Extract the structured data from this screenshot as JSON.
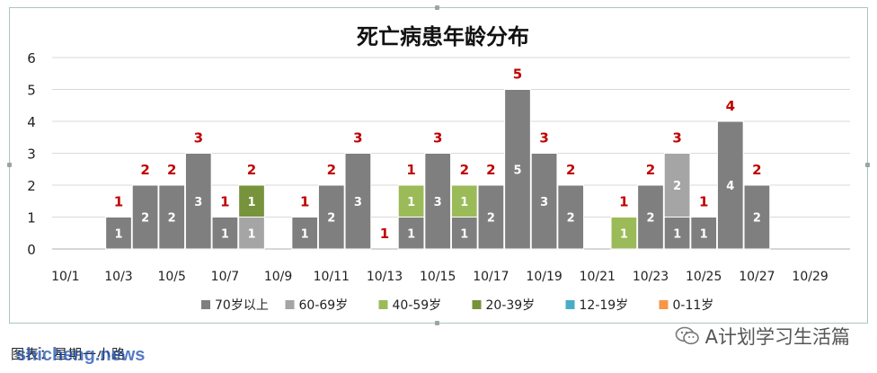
{
  "chart_data": {
    "type": "bar",
    "stacked": true,
    "title": "死亡病患年龄分布",
    "categories": [
      "10/1",
      "10/2",
      "10/3",
      "10/4",
      "10/5",
      "10/6",
      "10/7",
      "10/8",
      "10/9",
      "10/10",
      "10/11",
      "10/12",
      "10/13",
      "10/14",
      "10/15",
      "10/16",
      "10/17",
      "10/18",
      "10/19",
      "10/20",
      "10/21",
      "10/22",
      "10/23",
      "10/24",
      "10/25",
      "10/26",
      "10/27",
      "10/28",
      "10/29",
      "10/30"
    ],
    "x_tick_labels": [
      "10/1",
      "10/3",
      "10/5",
      "10/7",
      "10/9",
      "10/11",
      "10/13",
      "10/15",
      "10/17",
      "10/19",
      "10/21",
      "10/23",
      "10/25",
      "10/27",
      "10/29"
    ],
    "ylim": [
      0,
      6
    ],
    "yticks": [
      "0",
      "1",
      "2",
      "3",
      "4",
      "5",
      "6"
    ],
    "grid": true,
    "legend_position": "bottom",
    "series": [
      {
        "name": "70岁以上",
        "color": "#7f7f7f",
        "values": [
          0,
          0,
          1,
          2,
          2,
          3,
          1,
          0,
          0,
          1,
          2,
          3,
          0,
          1,
          3,
          1,
          2,
          5,
          3,
          2,
          0,
          0,
          2,
          1,
          1,
          4,
          2,
          0,
          0,
          0
        ]
      },
      {
        "name": "60-69岁",
        "color": "#a5a5a5",
        "values": [
          0,
          0,
          0,
          0,
          0,
          0,
          0,
          1,
          0,
          0,
          0,
          0,
          0,
          0,
          0,
          0,
          0,
          0,
          0,
          0,
          0,
          0,
          0,
          2,
          0,
          0,
          0,
          0,
          0,
          0
        ]
      },
      {
        "name": "40-59岁",
        "color": "#9bbb59",
        "values": [
          0,
          0,
          0,
          0,
          0,
          0,
          0,
          0,
          0,
          0,
          0,
          0,
          0,
          1,
          0,
          1,
          0,
          0,
          0,
          0,
          0,
          1,
          0,
          0,
          0,
          0,
          0,
          0,
          0,
          0
        ]
      },
      {
        "name": "20-39岁",
        "color": "#77933c",
        "values": [
          0,
          0,
          0,
          0,
          0,
          0,
          0,
          1,
          0,
          0,
          0,
          0,
          0,
          0,
          0,
          0,
          0,
          0,
          0,
          0,
          0,
          0,
          0,
          0,
          0,
          0,
          0,
          0,
          0,
          0
        ]
      },
      {
        "name": "12-19岁",
        "color": "#4bacc6",
        "values": [
          0,
          0,
          0,
          0,
          0,
          0,
          0,
          0,
          0,
          0,
          0,
          0,
          0,
          0,
          0,
          0,
          0,
          0,
          0,
          0,
          0,
          0,
          0,
          0,
          0,
          0,
          0,
          0,
          0,
          0
        ]
      },
      {
        "name": "0-11岁",
        "color": "#f79646",
        "values": [
          0,
          0,
          0,
          0,
          0,
          0,
          0,
          0,
          0,
          0,
          0,
          0,
          0,
          0,
          0,
          0,
          0,
          0,
          0,
          0,
          0,
          0,
          0,
          0,
          0,
          0,
          0,
          0,
          0,
          0
        ]
      }
    ],
    "totals": [
      "",
      "",
      "1",
      "2",
      "2",
      "3",
      "1",
      "2",
      "",
      "1",
      "2",
      "3",
      "1",
      "1",
      "3",
      "2",
      "2",
      "5",
      "3",
      "2",
      "",
      "1",
      "2",
      "3",
      "1",
      "4",
      "2",
      "",
      "",
      ""
    ],
    "total_label_color": "#c00000",
    "segment_label_color": "#ffffff",
    "axis_label_color": "#222222",
    "grid_color": "#d9d9d9"
  },
  "footer": {
    "source_label": "图表：星期一小路",
    "watermark": "shicheng.news",
    "wechat_name": "A计划学习生活篇"
  }
}
